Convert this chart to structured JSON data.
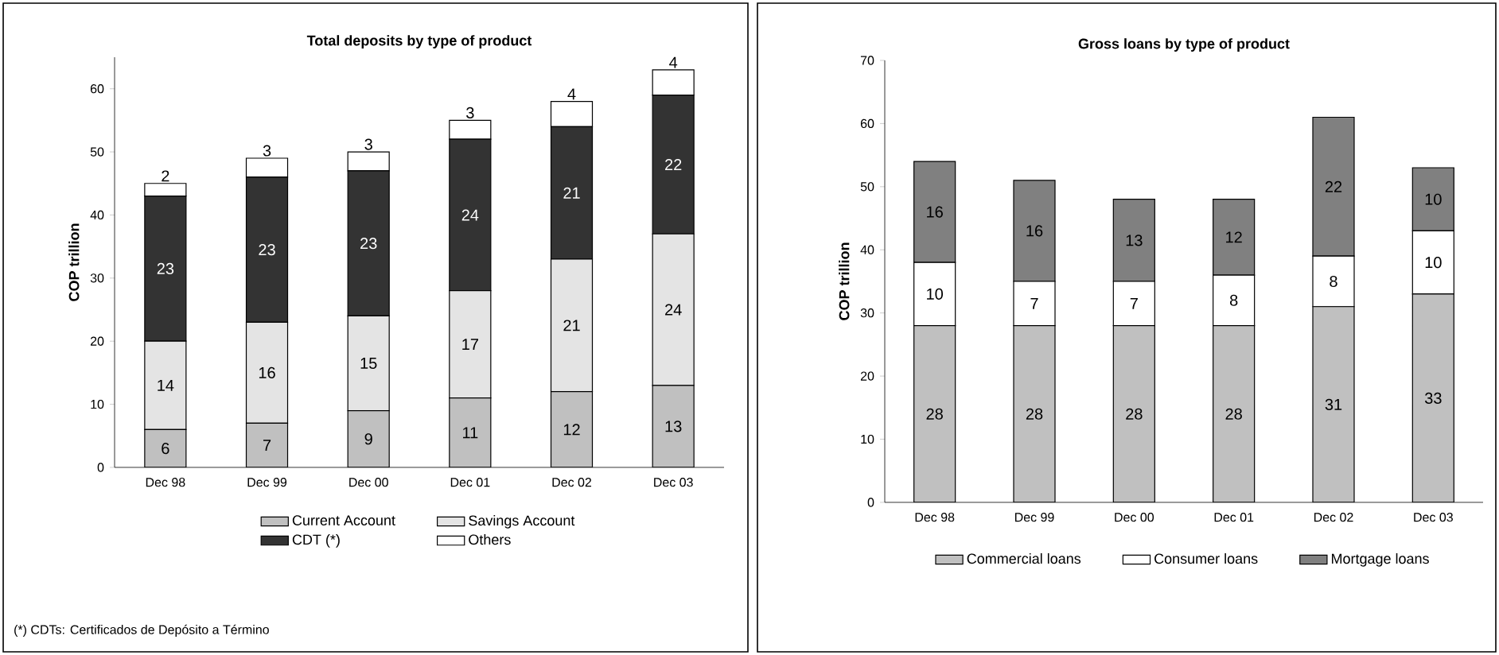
{
  "chart_data": [
    {
      "type": "bar",
      "title": "Total deposits by type of product",
      "ylabel": "COP trillion",
      "categories": [
        "Dec 98",
        "Dec 99",
        "Dec 00",
        "Dec 01",
        "Dec 02",
        "Dec 03"
      ],
      "stacked": true,
      "data_labels": true,
      "legend": "bottom",
      "grid": false,
      "ylim": [
        0,
        65
      ],
      "yticks": [
        0,
        10,
        20,
        30,
        40,
        50,
        60
      ],
      "series": [
        {
          "name": "Current Account",
          "color": "#c0c0c0",
          "values": [
            6,
            7,
            9,
            11,
            12,
            13
          ]
        },
        {
          "name": "Savings Account",
          "color": "#e4e4e4",
          "values": [
            14,
            16,
            15,
            17,
            21,
            24
          ]
        },
        {
          "name": "CDT (*)",
          "color": "#333333",
          "values": [
            23,
            23,
            23,
            24,
            21,
            22
          ]
        },
        {
          "name": "Others",
          "color": "#ffffff",
          "values": [
            2,
            3,
            3,
            3,
            4,
            4
          ]
        }
      ],
      "annotations": [
        "(*) CDTs: Certificados de Depósito a Término"
      ]
    },
    {
      "type": "bar",
      "title": "Gross loans by type of product",
      "ylabel": "COP trillion",
      "categories": [
        "Dec 98",
        "Dec 99",
        "Dec 00",
        "Dec 01",
        "Dec 02",
        "Dec 03"
      ],
      "stacked": true,
      "data_labels": true,
      "legend": "bottom",
      "grid": false,
      "ylim": [
        0,
        70
      ],
      "yticks": [
        0,
        10,
        20,
        30,
        40,
        50,
        60,
        70
      ],
      "series": [
        {
          "name": "Commercial loans",
          "color": "#c0c0c0",
          "values": [
            28,
            28,
            28,
            28,
            31,
            33
          ]
        },
        {
          "name": "Consumer loans",
          "color": "#ffffff",
          "values": [
            10,
            7,
            7,
            8,
            8,
            10
          ]
        },
        {
          "name": "Mortgage loans",
          "color": "#808080",
          "values": [
            16,
            16,
            13,
            12,
            22,
            10
          ]
        }
      ]
    }
  ]
}
